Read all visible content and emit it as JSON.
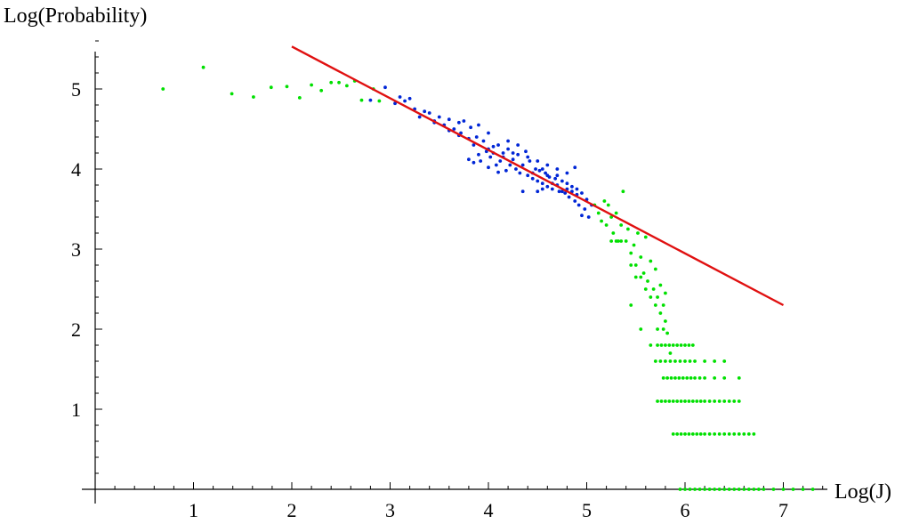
{
  "chart_data": {
    "type": "scatter",
    "xlabel": "Log(J)",
    "ylabel": "Log(Probability)",
    "xlim": [
      0,
      7.5
    ],
    "ylim": [
      0,
      5.6
    ],
    "x_ticks": [
      1,
      2,
      3,
      4,
      5,
      6,
      7
    ],
    "y_ticks": [
      1,
      2,
      3,
      4,
      5
    ],
    "x_tick_labels": [
      "1",
      "2",
      "3",
      "4",
      "5",
      "6",
      "7"
    ],
    "y_tick_labels": [
      "1",
      "2",
      "3",
      "4",
      "5"
    ],
    "grid": false,
    "series": [
      {
        "color": "#00e000",
        "points": [
          [
            0.69,
            5.0
          ],
          [
            1.1,
            5.27
          ],
          [
            1.39,
            4.94
          ],
          [
            1.61,
            4.9
          ],
          [
            1.79,
            5.02
          ],
          [
            1.95,
            5.03
          ],
          [
            2.08,
            4.89
          ],
          [
            2.2,
            5.05
          ],
          [
            2.3,
            4.98
          ],
          [
            2.4,
            5.08
          ],
          [
            2.48,
            5.08
          ],
          [
            2.56,
            5.04
          ],
          [
            2.64,
            5.1
          ],
          [
            2.71,
            4.86
          ],
          [
            2.83,
            5.0
          ],
          [
            2.89,
            4.85
          ],
          [
            5.08,
            3.55
          ],
          [
            5.12,
            3.45
          ],
          [
            5.15,
            3.35
          ],
          [
            5.18,
            3.6
          ],
          [
            5.2,
            3.3
          ],
          [
            5.22,
            3.55
          ],
          [
            5.25,
            3.4
          ],
          [
            5.27,
            3.2
          ],
          [
            5.3,
            3.45
          ],
          [
            5.32,
            3.1
          ],
          [
            5.35,
            3.3
          ],
          [
            5.37,
            3.72
          ],
          [
            5.4,
            3.1
          ],
          [
            5.42,
            3.25
          ],
          [
            5.45,
            2.95
          ],
          [
            5.48,
            3.05
          ],
          [
            5.5,
            2.8
          ],
          [
            5.52,
            3.2
          ],
          [
            5.55,
            2.9
          ],
          [
            5.58,
            2.7
          ],
          [
            5.6,
            3.15
          ],
          [
            5.62,
            2.6
          ],
          [
            5.65,
            2.85
          ],
          [
            5.68,
            2.5
          ],
          [
            5.7,
            2.75
          ],
          [
            5.72,
            2.4
          ],
          [
            5.75,
            2.55
          ],
          [
            5.78,
            2.3
          ],
          [
            5.8,
            2.45
          ],
          [
            5.25,
            3.1
          ],
          [
            5.3,
            3.1
          ],
          [
            5.35,
            3.1
          ],
          [
            5.45,
            2.8
          ],
          [
            5.5,
            2.65
          ],
          [
            5.55,
            2.65
          ],
          [
            5.6,
            2.5
          ],
          [
            5.65,
            2.4
          ],
          [
            5.7,
            2.3
          ],
          [
            5.75,
            2.2
          ],
          [
            5.78,
            2.0
          ],
          [
            5.8,
            2.1
          ],
          [
            5.45,
            2.3
          ],
          [
            5.55,
            2.0
          ],
          [
            5.65,
            1.8
          ],
          [
            5.7,
            1.6
          ],
          [
            5.72,
            2.0
          ],
          [
            5.82,
            1.95
          ],
          [
            5.85,
            1.7
          ],
          [
            5.72,
            1.8
          ],
          [
            5.76,
            1.8
          ],
          [
            5.8,
            1.8
          ],
          [
            5.84,
            1.8
          ],
          [
            5.88,
            1.8
          ],
          [
            5.92,
            1.8
          ],
          [
            5.96,
            1.8
          ],
          [
            6.0,
            1.8
          ],
          [
            6.04,
            1.8
          ],
          [
            6.08,
            1.8
          ],
          [
            5.75,
            1.6
          ],
          [
            5.8,
            1.6
          ],
          [
            5.85,
            1.6
          ],
          [
            5.9,
            1.6
          ],
          [
            5.95,
            1.6
          ],
          [
            6.0,
            1.6
          ],
          [
            6.05,
            1.6
          ],
          [
            6.1,
            1.6
          ],
          [
            6.2,
            1.6
          ],
          [
            6.3,
            1.6
          ],
          [
            6.4,
            1.6
          ],
          [
            5.78,
            1.39
          ],
          [
            5.82,
            1.39
          ],
          [
            5.86,
            1.39
          ],
          [
            5.9,
            1.39
          ],
          [
            5.94,
            1.39
          ],
          [
            5.98,
            1.39
          ],
          [
            6.02,
            1.39
          ],
          [
            6.06,
            1.39
          ],
          [
            6.1,
            1.39
          ],
          [
            6.15,
            1.39
          ],
          [
            6.2,
            1.39
          ],
          [
            6.3,
            1.39
          ],
          [
            6.4,
            1.39
          ],
          [
            6.55,
            1.39
          ],
          [
            5.72,
            1.1
          ],
          [
            5.76,
            1.1
          ],
          [
            5.8,
            1.1
          ],
          [
            5.84,
            1.1
          ],
          [
            5.88,
            1.1
          ],
          [
            5.92,
            1.1
          ],
          [
            5.96,
            1.1
          ],
          [
            6.0,
            1.1
          ],
          [
            6.04,
            1.1
          ],
          [
            6.08,
            1.1
          ],
          [
            6.12,
            1.1
          ],
          [
            6.16,
            1.1
          ],
          [
            6.2,
            1.1
          ],
          [
            6.25,
            1.1
          ],
          [
            6.3,
            1.1
          ],
          [
            6.35,
            1.1
          ],
          [
            6.4,
            1.1
          ],
          [
            6.45,
            1.1
          ],
          [
            6.5,
            1.1
          ],
          [
            6.55,
            1.1
          ],
          [
            5.88,
            0.69
          ],
          [
            5.92,
            0.69
          ],
          [
            5.96,
            0.69
          ],
          [
            6.0,
            0.69
          ],
          [
            6.04,
            0.69
          ],
          [
            6.08,
            0.69
          ],
          [
            6.12,
            0.69
          ],
          [
            6.16,
            0.69
          ],
          [
            6.2,
            0.69
          ],
          [
            6.25,
            0.69
          ],
          [
            6.3,
            0.69
          ],
          [
            6.35,
            0.69
          ],
          [
            6.4,
            0.69
          ],
          [
            6.45,
            0.69
          ],
          [
            6.5,
            0.69
          ],
          [
            6.55,
            0.69
          ],
          [
            6.6,
            0.69
          ],
          [
            6.65,
            0.69
          ],
          [
            6.7,
            0.69
          ],
          [
            5.95,
            0.0
          ],
          [
            6.0,
            0.0
          ],
          [
            6.05,
            0.0
          ],
          [
            6.1,
            0.0
          ],
          [
            6.15,
            0.0
          ],
          [
            6.2,
            0.0
          ],
          [
            6.25,
            0.0
          ],
          [
            6.3,
            0.0
          ],
          [
            6.35,
            0.0
          ],
          [
            6.4,
            0.0
          ],
          [
            6.45,
            0.0
          ],
          [
            6.5,
            0.0
          ],
          [
            6.55,
            0.0
          ],
          [
            6.6,
            0.0
          ],
          [
            6.65,
            0.0
          ],
          [
            6.7,
            0.0
          ],
          [
            6.75,
            0.0
          ],
          [
            6.8,
            0.0
          ],
          [
            6.9,
            0.0
          ],
          [
            7.0,
            0.0
          ],
          [
            7.1,
            0.0
          ],
          [
            7.2,
            0.0
          ],
          [
            7.3,
            0.0
          ]
        ]
      },
      {
        "color": "#0026d6",
        "points": [
          [
            2.8,
            4.86
          ],
          [
            2.95,
            5.02
          ],
          [
            3.05,
            4.82
          ],
          [
            3.1,
            4.9
          ],
          [
            3.15,
            4.85
          ],
          [
            3.2,
            4.88
          ],
          [
            3.25,
            4.75
          ],
          [
            3.3,
            4.65
          ],
          [
            3.35,
            4.72
          ],
          [
            3.4,
            4.7
          ],
          [
            3.45,
            4.6
          ],
          [
            3.5,
            4.65
          ],
          [
            3.55,
            4.55
          ],
          [
            3.6,
            4.62
          ],
          [
            3.65,
            4.5
          ],
          [
            3.7,
            4.58
          ],
          [
            3.72,
            4.45
          ],
          [
            3.75,
            4.6
          ],
          [
            3.8,
            4.38
          ],
          [
            3.82,
            4.52
          ],
          [
            3.85,
            4.3
          ],
          [
            3.88,
            4.4
          ],
          [
            3.9,
            4.55
          ],
          [
            3.92,
            4.1
          ],
          [
            3.95,
            4.35
          ],
          [
            3.98,
            4.22
          ],
          [
            4.0,
            4.45
          ],
          [
            4.02,
            4.15
          ],
          [
            4.05,
            4.28
          ],
          [
            4.08,
            4.05
          ],
          [
            4.1,
            4.3
          ],
          [
            4.12,
            4.1
          ],
          [
            4.15,
            4.2
          ],
          [
            4.18,
            3.98
          ],
          [
            4.2,
            4.35
          ],
          [
            4.22,
            4.05
          ],
          [
            4.25,
            4.12
          ],
          [
            4.28,
            4.0
          ],
          [
            4.3,
            4.18
          ],
          [
            4.32,
            3.95
          ],
          [
            4.35,
            4.05
          ],
          [
            4.38,
            4.22
          ],
          [
            4.4,
            3.92
          ],
          [
            4.42,
            4.1
          ],
          [
            4.45,
            3.88
          ],
          [
            4.48,
            4.0
          ],
          [
            4.5,
            3.85
          ],
          [
            4.52,
            3.98
          ],
          [
            4.55,
            3.82
          ],
          [
            4.58,
            3.95
          ],
          [
            4.6,
            3.78
          ],
          [
            4.62,
            3.9
          ],
          [
            4.65,
            3.75
          ],
          [
            4.68,
            3.88
          ],
          [
            4.7,
            3.8
          ],
          [
            4.72,
            3.72
          ],
          [
            4.75,
            3.85
          ],
          [
            4.78,
            3.7
          ],
          [
            4.8,
            3.82
          ],
          [
            4.82,
            3.65
          ],
          [
            4.85,
            3.78
          ],
          [
            4.88,
            3.6
          ],
          [
            4.9,
            3.75
          ],
          [
            4.92,
            3.55
          ],
          [
            4.95,
            3.7
          ],
          [
            4.98,
            3.5
          ],
          [
            5.0,
            3.62
          ],
          [
            5.02,
            3.4
          ],
          [
            5.05,
            3.55
          ],
          [
            3.8,
            4.12
          ],
          [
            3.85,
            4.08
          ],
          [
            3.9,
            4.18
          ],
          [
            4.0,
            4.02
          ],
          [
            4.1,
            3.96
          ],
          [
            4.2,
            4.25
          ],
          [
            4.3,
            4.3
          ],
          [
            4.4,
            4.15
          ],
          [
            4.5,
            4.1
          ],
          [
            4.6,
            4.05
          ],
          [
            4.7,
            4.0
          ],
          [
            4.8,
            3.95
          ],
          [
            4.88,
            4.02
          ],
          [
            4.35,
            3.72
          ],
          [
            4.5,
            3.72
          ],
          [
            4.55,
            3.75
          ],
          [
            4.95,
            3.42
          ],
          [
            4.65,
            3.82
          ],
          [
            4.75,
            3.72
          ],
          [
            4.85,
            3.72
          ],
          [
            3.45,
            4.58
          ],
          [
            3.6,
            4.48
          ],
          [
            3.7,
            4.42
          ],
          [
            4.0,
            4.25
          ],
          [
            4.05,
            4.2
          ],
          [
            4.15,
            4.15
          ],
          [
            4.25,
            4.2
          ],
          [
            4.45,
            3.95
          ],
          [
            4.55,
            4.0
          ],
          [
            4.6,
            3.92
          ],
          [
            4.7,
            3.92
          ],
          [
            4.8,
            3.75
          ],
          [
            4.9,
            3.68
          ]
        ]
      }
    ],
    "fit_line": {
      "color": "#e01010",
      "x": [
        2.0,
        7.0
      ],
      "y": [
        5.53,
        2.3
      ]
    }
  }
}
